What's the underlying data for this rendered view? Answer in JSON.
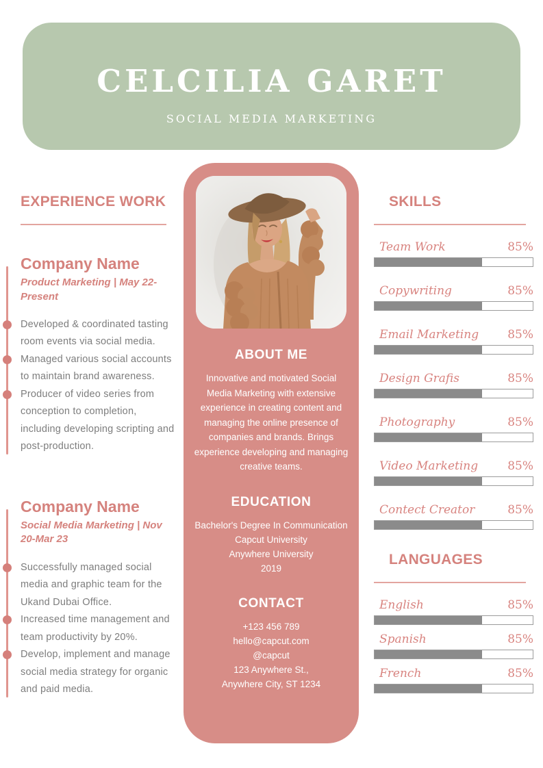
{
  "header": {
    "name": "CELCILIA GARET",
    "subtitle": "SOCIAL MEDIA MARKETING",
    "bg_color": "#b7c8ae"
  },
  "experience": {
    "heading": "EXPERIENCE WORK",
    "jobs": [
      {
        "company": "Company Name",
        "meta": "Product Marketing | May 22-Present",
        "bullets": [
          "Developed & coordinated tasting room events via social media.",
          "Managed various social accounts to maintain brand awareness.",
          "Producer of video series from conception to completion, including developing scripting and post-production."
        ]
      },
      {
        "company": "Company Name",
        "meta": "Social Media Marketing | Nov 20-Mar 23",
        "bullets": [
          "Successfully managed social media and graphic team for the Ukand Dubai Office.",
          "Increased time management and team productivity by 20%.",
          "Develop, implement and manage social media strategy for organic and paid media."
        ]
      }
    ]
  },
  "profile": {
    "photo_description": "woman in brown hat and knit cardigan",
    "panel_color": "#d78d87",
    "about": {
      "heading": "ABOUT ME",
      "text": "Innovative and motivated Social Media Marketing with extensive experience in creating content and managing the online presence of companies and brands. Brings experience developing and managing creative teams."
    },
    "education": {
      "heading": "EDUCATION",
      "degree": "Bachelor's Degree In Communication",
      "school1": "Capcut University",
      "school2": "Anywhere University",
      "year": "2019"
    },
    "contact": {
      "heading": "CONTACT",
      "phone": "+123  456 789",
      "email": "hello@capcut.com",
      "handle": "@capcut",
      "address1": "123 Anywhere St.,",
      "address2": "Anywhere City, ST 1234"
    }
  },
  "skills": {
    "heading": "SKILLS",
    "items": [
      {
        "name": "Team Work",
        "pct": "85%",
        "fill": 68
      },
      {
        "name": "Copywriting",
        "pct": "85%",
        "fill": 68
      },
      {
        "name": "Email Marketing",
        "pct": "85%",
        "fill": 68
      },
      {
        "name": "Design Grafis",
        "pct": "85%",
        "fill": 68
      },
      {
        "name": "Photography",
        "pct": "85%",
        "fill": 68
      },
      {
        "name": "Video Marketing",
        "pct": "85%",
        "fill": 68
      },
      {
        "name": "Contect Creator",
        "pct": "85%",
        "fill": 68
      }
    ]
  },
  "languages": {
    "heading": "LANGUAGES",
    "items": [
      {
        "name": "English",
        "pct": "85%",
        "fill": 68
      },
      {
        "name": "Spanish",
        "pct": "85%",
        "fill": 68
      },
      {
        "name": "French",
        "pct": "85%",
        "fill": 68
      }
    ]
  },
  "colors": {
    "header_green": "#b7c8ae",
    "panel_pink": "#d78d87",
    "accent_pink": "#d5827d",
    "bar_gray": "#8b8b8b",
    "body_gray": "#7d7d7d"
  }
}
